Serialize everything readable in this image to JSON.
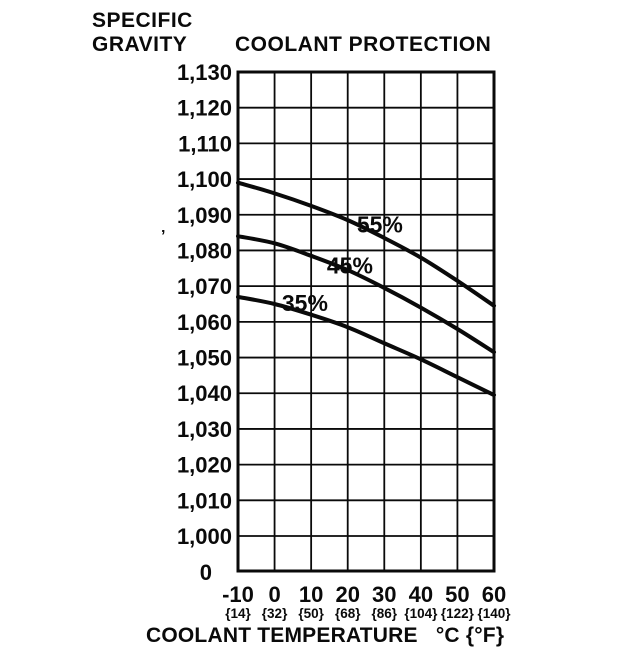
{
  "header": {
    "y_axis_title_line1": "SPECIFIC",
    "y_axis_title_line2": "GRAVITY",
    "chart_title": "COOLANT PROTECTION"
  },
  "footer": {
    "x_axis_title": "COOLANT TEMPERATURE   °C {°F}"
  },
  "artifacts": {
    "mark": "’"
  },
  "colors": {
    "ink": "#0a0a0a",
    "background": "#ffffff"
  },
  "chart_data": {
    "type": "line",
    "title": "COOLANT PROTECTION",
    "xlabel": "COOLANT TEMPERATURE °C {°F}",
    "ylabel": "SPECIFIC GRAVITY",
    "grid": true,
    "legend_position": "labels-on-curves",
    "line_color": "#0a0a0a",
    "ylim": [
      1000,
      1130
    ],
    "xlim_celsius": [
      -10,
      60
    ],
    "x": [
      -10,
      0,
      10,
      20,
      30,
      40,
      50,
      60
    ],
    "x_tick_labels_celsius": [
      "-10",
      "0",
      "10",
      "20",
      "30",
      "40",
      "50",
      "60"
    ],
    "x_tick_labels_fahrenheit": [
      "{14}",
      "{32}",
      "{50}",
      "{68}",
      "{86}",
      "{104}",
      "{122}",
      "{140}"
    ],
    "y_tick_labels": [
      "1,130",
      "1,120",
      "1,110",
      "1,100",
      "1,090",
      "1,080",
      "1,070",
      "1,060",
      "1,050",
      "1,040",
      "1,030",
      "1,020",
      "1,010",
      "1,000"
    ],
    "y_origin_label": "0",
    "series": [
      {
        "name": "55%",
        "values": [
          1099,
          1096,
          1092.5,
          1088.5,
          1083.5,
          1078,
          1071.5,
          1064.5
        ],
        "label_anchor": {
          "x_c": 22.5,
          "y_sg": 1085
        }
      },
      {
        "name": "45%",
        "values": [
          1084,
          1082,
          1078.5,
          1074.5,
          1069.5,
          1064,
          1058,
          1051.5
        ],
        "label_anchor": {
          "x_c": 14.3,
          "y_sg": 1073.5
        }
      },
      {
        "name": "35%",
        "values": [
          1067,
          1065,
          1062,
          1058.5,
          1054,
          1049.5,
          1044.5,
          1039.5
        ],
        "label_anchor": {
          "x_c": 2.0,
          "y_sg": 1063
        }
      }
    ]
  }
}
